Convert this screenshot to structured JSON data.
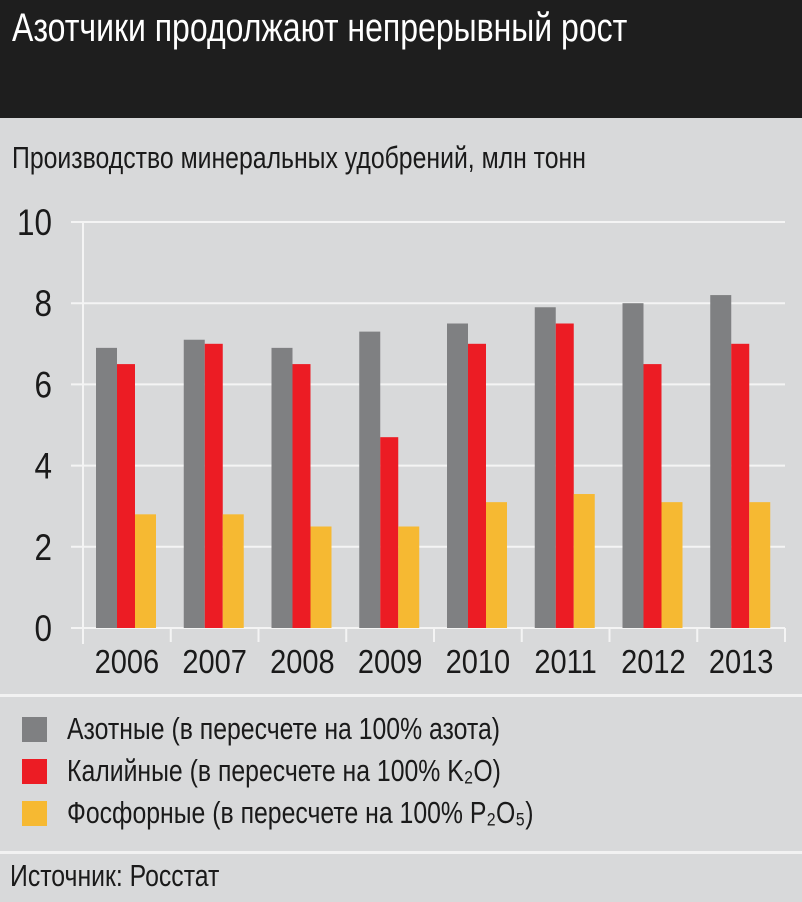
{
  "header": {
    "title": "Азотчики продолжают непрерывный рост"
  },
  "chart_data": {
    "type": "bar",
    "title": "Производство минеральных удобрений, млн тонн",
    "xlabel": "",
    "ylabel": "",
    "ylim": [
      0,
      10
    ],
    "yticks": [
      "0",
      "2",
      "4",
      "6",
      "8",
      "10"
    ],
    "grid": true,
    "legend_position": "bottom",
    "categories": [
      "2006",
      "2007",
      "2008",
      "2009",
      "2010",
      "2011",
      "2012",
      "2013"
    ],
    "series": [
      {
        "name": "Азотные (в пересчете на 100% азота)",
        "color": "#7f8082",
        "values": [
          6.9,
          7.1,
          6.9,
          7.3,
          7.5,
          7.9,
          8.0,
          8.2
        ]
      },
      {
        "name": "Калийные (в пересчете на 100% K₂O)",
        "color": "#ec1c24",
        "values": [
          6.5,
          7.0,
          6.5,
          4.7,
          7.0,
          7.5,
          6.5,
          7.0
        ]
      },
      {
        "name": "Фосфорные (в пересчете на 100% P₂O₅)",
        "color": "#f6b932",
        "values": [
          2.8,
          2.8,
          2.5,
          2.5,
          3.1,
          3.3,
          3.1,
          3.1
        ]
      }
    ]
  },
  "footer": {
    "source": "Источник: Росстат"
  }
}
